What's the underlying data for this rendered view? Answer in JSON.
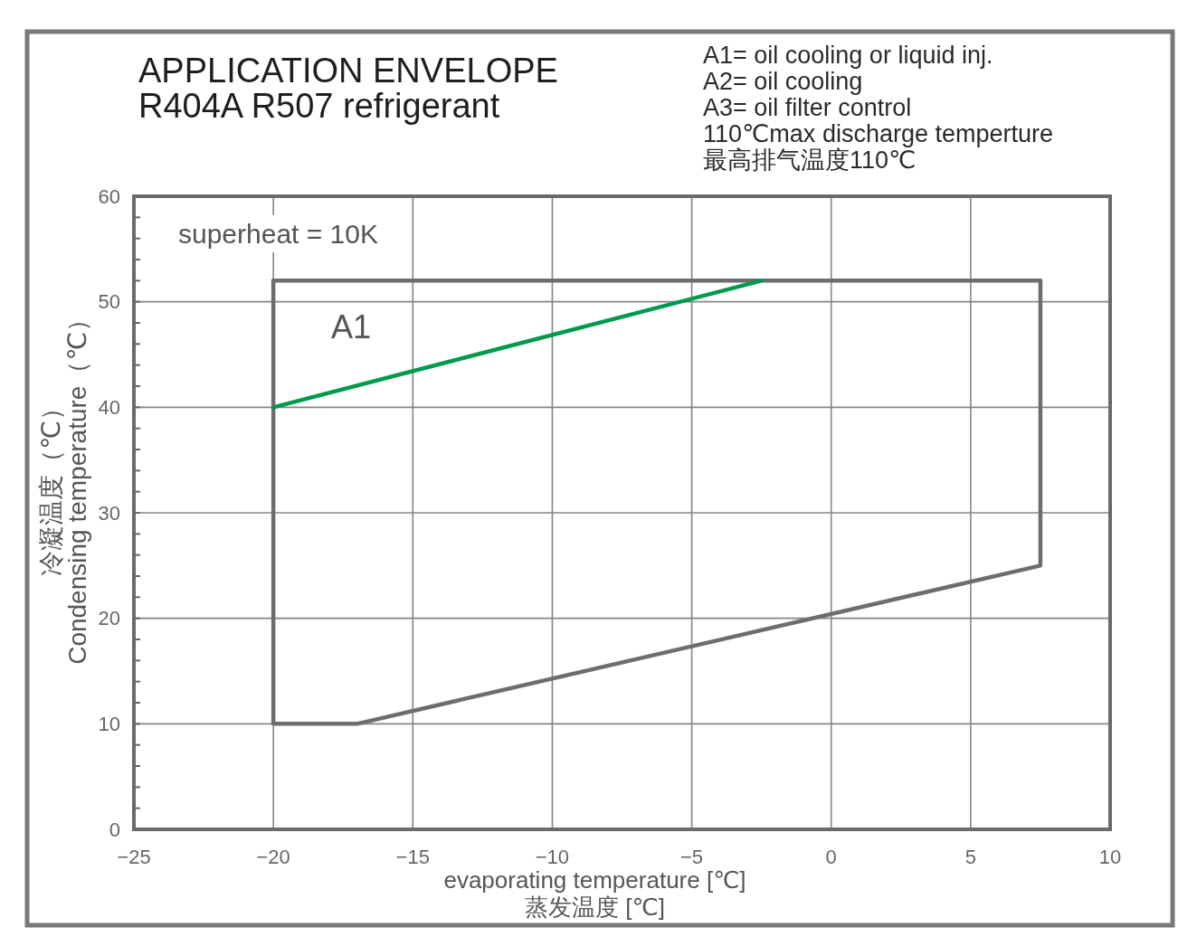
{
  "chart_data": {
    "type": "line",
    "title": "APPLICATION ENVELOPE",
    "subtitle": "R404A R507   refrigerant",
    "xlabel": "evaporating temperature [℃]\n蒸发温度 [℃]",
    "ylabel": "冷凝温度（℃）\nCondensing temperature（℃）",
    "annotations": [
      "superheat = 10K",
      "A1",
      "A1= oil cooling or liquid inj.",
      "A2= oil cooling",
      "A3= oil filter control",
      "110℃max discharge temperture",
      "最高排气温度110℃"
    ],
    "series": [
      {
        "color": "#6d6d6d",
        "x": [
          -20,
          -20,
          -17,
          7.5,
          7.5
        ],
        "values": [
          52,
          10,
          10,
          25,
          52
        ]
      },
      {
        "color": "#6d6d6d",
        "x": [
          -20,
          7.5
        ],
        "values": [
          52,
          52
        ]
      },
      {
        "color": "#009a4e",
        "x": [
          -20,
          -2.5
        ],
        "values": [
          40,
          52
        ]
      }
    ],
    "xlim": [
      -25,
      10
    ],
    "ylim": [
      0,
      60
    ],
    "xticks": [
      {
        "value": -25,
        "label": "−25"
      },
      {
        "value": -20,
        "label": "−20"
      },
      {
        "value": -15,
        "label": "−15"
      },
      {
        "value": -10,
        "label": "−10"
      },
      {
        "value": -5,
        "label": "−5"
      },
      0,
      5,
      10
    ],
    "yticks": [
      0,
      {
        "value": 2,
        "label": null
      },
      {
        "value": 4,
        "label": null
      },
      {
        "value": 6,
        "label": null
      },
      {
        "value": 8,
        "label": null
      },
      10,
      {
        "value": 12,
        "label": null
      },
      {
        "value": 14,
        "label": null
      },
      {
        "value": 16,
        "label": null
      },
      {
        "value": 18,
        "label": null
      },
      20,
      {
        "value": 22,
        "label": null
      },
      {
        "value": 24,
        "label": null
      },
      {
        "value": 26,
        "label": null
      },
      {
        "value": 28,
        "label": null
      },
      30,
      {
        "value": 32,
        "label": null
      },
      {
        "value": 34,
        "label": null
      },
      {
        "value": 36,
        "label": null
      },
      {
        "value": 38,
        "label": null
      },
      40,
      {
        "value": 42,
        "label": null
      },
      {
        "value": 44,
        "label": null
      },
      {
        "value": 46,
        "label": null
      },
      {
        "value": 48,
        "label": null
      },
      50,
      {
        "value": 52,
        "label": null
      },
      {
        "value": 54,
        "label": null
      },
      {
        "value": 56,
        "label": null
      },
      {
        "value": 58,
        "label": null
      },
      60
    ],
    "grid": true,
    "line_style": "solid"
  }
}
